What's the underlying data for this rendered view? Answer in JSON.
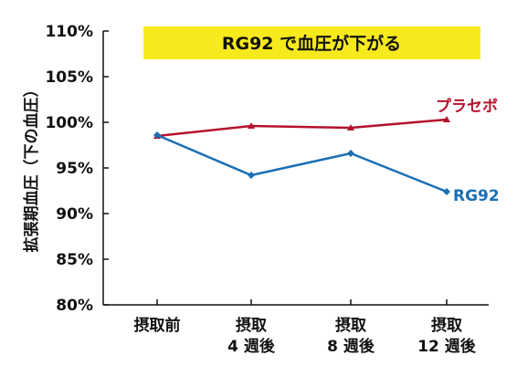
{
  "chart_data": {
    "type": "line",
    "title": "RG92 で血圧が下がる",
    "ylabel": "拡張期血圧（下の血圧）",
    "xlabel": "",
    "ylim": [
      80,
      110
    ],
    "yticks": [
      "80%",
      "85%",
      "90%",
      "95%",
      "100%",
      "105%",
      "110%"
    ],
    "ytick_values": [
      80,
      85,
      90,
      95,
      100,
      105,
      110
    ],
    "categories": [
      [
        "摂取前"
      ],
      [
        "摂取",
        "4 週後"
      ],
      [
        "摂取",
        "8 週後"
      ],
      [
        "摂取",
        "12 週後"
      ]
    ],
    "series": [
      {
        "name": "プラセボ",
        "values": [
          98.5,
          99.6,
          99.4,
          100.3
        ]
      },
      {
        "name": "RG92",
        "values": [
          98.6,
          94.2,
          96.6,
          92.4
        ]
      }
    ],
    "grid": false,
    "legend": "labels at line ends"
  },
  "colors": {
    "placebo": "#b5122e",
    "rg92": "#1a6fb5",
    "title_bg": "#f7ea1c",
    "axis": "#111111"
  }
}
